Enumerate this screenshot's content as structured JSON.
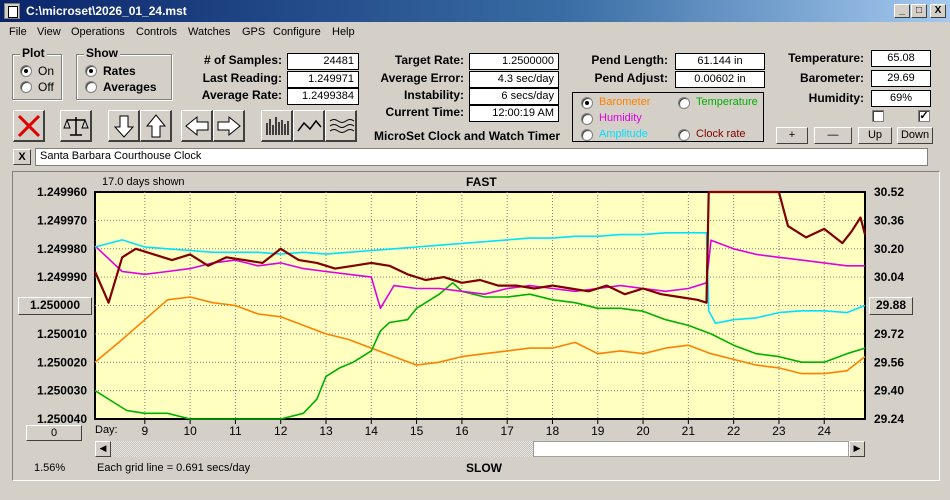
{
  "window": {
    "title": "C:\\microset\\2026_01_24.mst",
    "minimize_glyph": "_",
    "maximize_glyph": "□",
    "close_glyph": "X"
  },
  "menu": [
    "File",
    "View",
    "Operations",
    "Controls",
    "Watches",
    "GPS",
    "Configure",
    "Help"
  ],
  "plot_group": {
    "title": "Plot",
    "on": "On",
    "off": "Off",
    "selected": "On"
  },
  "show_group": {
    "title": "Show",
    "rates": "Rates",
    "averages": "Averages",
    "selected": "Rates"
  },
  "stats": {
    "samples_label": "# of Samples:",
    "samples": "24481",
    "last_label": "Last Reading:",
    "last": "1.249971",
    "avg_rate_label": "Average Rate:",
    "avg_rate": "1.2499384",
    "target_label": "Target Rate:",
    "target": "1.2500000",
    "avg_err_label": "Average Error:",
    "avg_err": "4.3 sec/day",
    "instab_label": "Instability:",
    "instab": "6 secs/day",
    "time_label": "Current Time:",
    "time": "12:00:19 AM",
    "pend_len_label": "Pend Length:",
    "pend_len": "61.144 in",
    "pend_adj_label": "Pend Adjust:",
    "pend_adj": "0.00602 in",
    "temp_label": "Temperature:",
    "temp": "65.08",
    "baro_label": "Barometer:",
    "baro": "29.69",
    "hum_label": "Humidity:",
    "hum": "69%"
  },
  "app_caption": "MicroSet Clock and Watch Timer",
  "channels": {
    "barometer": "Barometer",
    "temperature": "Temperature",
    "humidity": "Humidity",
    "amplitude": "Amplitude",
    "clock_rate": "Clock rate",
    "selected": "Barometer"
  },
  "nav_buttons": {
    "plus": "+",
    "minus": "—",
    "up": "Up",
    "down": "Down"
  },
  "checkboxes": {
    "left_checked": false,
    "right_checked": true,
    "check_glyph": "✓"
  },
  "note": {
    "close_glyph": "X",
    "value": "Santa Barbara Courthouse Clock"
  },
  "toolbar_icons": [
    "clear-x-icon",
    "balance-scale-icon",
    "arrow-down-icon",
    "arrow-up-icon",
    "arrow-left-icon",
    "arrow-right-icon",
    "bar-graph-icon",
    "line-graph-icon",
    "wave-graph-icon"
  ],
  "colors": {
    "barometer": "#ff8000",
    "temperature": "#00b000",
    "humidity": "#e000e0",
    "amplitude": "#00e0ff",
    "clock_rate": "#800000",
    "plot_bg": "#ffffc0",
    "grid": "#808080"
  },
  "chart_data": {
    "type": "line",
    "days_shown": "17.0 days shown",
    "top_label": "FAST",
    "bottom_label": "SLOW",
    "grid_note": "Each grid line = 0.691 secs/day",
    "percent": "1.56%",
    "left_value_box": "1.250000",
    "right_value_box": "29.88",
    "zero_button": "0",
    "xlabel": "Day:",
    "x_ticks": [
      9,
      10,
      11,
      12,
      13,
      14,
      15,
      16,
      17,
      18,
      19,
      20,
      21,
      22,
      23,
      24
    ],
    "xlim": [
      7.9,
      24.9
    ],
    "y_left_ticks": [
      "1.249960",
      "1.249970",
      "1.249980",
      "1.249990",
      "1.250000",
      "1.250010",
      "1.250020",
      "1.250030",
      "1.250040"
    ],
    "y_left_lim": [
      1.24996,
      1.25004
    ],
    "y_right_ticks": [
      "30.52",
      "30.36",
      "30.20",
      "30.04",
      "29.88",
      "29.72",
      "29.56",
      "29.40",
      "29.24"
    ],
    "y_right_lim": [
      29.24,
      30.52
    ],
    "series": [
      {
        "name": "Clock rate",
        "axis": "left",
        "x": [
          7.9,
          8.2,
          8.5,
          8.8,
          9.2,
          9.6,
          10.0,
          10.4,
          10.8,
          11.2,
          11.6,
          12.0,
          12.4,
          12.8,
          13.2,
          13.6,
          14.0,
          14.4,
          14.8,
          15.2,
          15.6,
          16.0,
          16.4,
          16.8,
          17.2,
          17.6,
          18.0,
          18.4,
          18.8,
          19.2,
          19.6,
          20.0,
          20.4,
          20.8,
          21.2,
          21.4,
          21.45,
          21.6,
          22.0,
          22.4,
          22.8,
          23.0,
          23.2,
          23.6,
          24.0,
          24.4,
          24.6,
          24.8,
          24.9
        ],
        "y": [
          1.249988,
          1.249999,
          1.249983,
          1.24998,
          1.249982,
          1.249984,
          1.249982,
          1.249986,
          1.249983,
          1.249984,
          1.249985,
          1.24998,
          1.249984,
          1.249985,
          1.249987,
          1.249986,
          1.249985,
          1.249986,
          1.249989,
          1.249991,
          1.24999,
          1.249992,
          1.249991,
          1.249993,
          1.249993,
          1.249994,
          1.249993,
          1.249994,
          1.249995,
          1.249993,
          1.249996,
          1.249994,
          1.249996,
          1.249997,
          1.249998,
          1.249999,
          1.24996,
          1.24996,
          1.24996,
          1.24996,
          1.24996,
          1.24996,
          1.249972,
          1.249976,
          1.249973,
          1.249978,
          1.249974,
          1.249969,
          1.249975
        ]
      },
      {
        "name": "Amplitude",
        "axis": "right",
        "x": [
          7.9,
          8.5,
          9.0,
          9.5,
          10.0,
          10.5,
          11.0,
          11.5,
          12.0,
          12.5,
          13.0,
          13.5,
          14.0,
          14.5,
          15.0,
          15.5,
          16.0,
          16.5,
          17.0,
          17.5,
          18.0,
          18.5,
          19.0,
          19.5,
          20.0,
          20.5,
          21.0,
          21.4,
          21.45,
          21.6,
          22.0,
          22.5,
          23.0,
          23.5,
          24.0,
          24.5,
          24.9
        ],
        "y": [
          30.21,
          30.25,
          30.21,
          30.2,
          30.19,
          30.18,
          30.18,
          30.18,
          30.17,
          30.18,
          30.17,
          30.18,
          30.19,
          30.2,
          30.21,
          30.22,
          30.23,
          30.24,
          30.25,
          30.26,
          30.26,
          30.27,
          30.27,
          30.28,
          30.28,
          30.29,
          30.29,
          30.29,
          29.85,
          29.78,
          29.8,
          29.81,
          29.84,
          29.85,
          29.85,
          29.84,
          29.88
        ]
      },
      {
        "name": "Humidity",
        "axis": "left",
        "x": [
          7.9,
          8.5,
          9.0,
          9.5,
          10.0,
          10.5,
          11.0,
          11.5,
          12.0,
          12.5,
          13.0,
          13.5,
          14.0,
          14.2,
          14.5,
          15.0,
          15.5,
          16.0,
          16.5,
          17.0,
          17.5,
          18.0,
          18.5,
          19.0,
          19.5,
          20.0,
          20.5,
          21.0,
          21.4,
          21.5,
          22.0,
          22.5,
          23.0,
          23.5,
          24.0,
          24.5,
          24.9
        ],
        "y": [
          1.249979,
          1.249988,
          1.249989,
          1.249988,
          1.249987,
          1.249985,
          1.249984,
          1.249986,
          1.249985,
          1.249987,
          1.249988,
          1.249989,
          1.24999,
          1.250001,
          1.249993,
          1.249994,
          1.249994,
          1.249995,
          1.249996,
          1.249994,
          1.249993,
          1.249994,
          1.249995,
          1.249994,
          1.249993,
          1.249994,
          1.249995,
          1.249994,
          1.249992,
          1.249977,
          1.24998,
          1.249982,
          1.249983,
          1.249984,
          1.249985,
          1.249986,
          1.249986
        ]
      },
      {
        "name": "Barometer",
        "axis": "left",
        "x": [
          7.9,
          8.5,
          9.0,
          9.5,
          10.0,
          10.5,
          11.0,
          11.5,
          12.0,
          12.5,
          13.0,
          13.5,
          14.0,
          14.5,
          15.0,
          15.5,
          16.0,
          16.5,
          17.0,
          17.5,
          18.0,
          18.5,
          19.0,
          19.5,
          20.0,
          20.5,
          21.0,
          21.5,
          22.0,
          22.5,
          23.0,
          23.5,
          24.0,
          24.5,
          24.9
        ],
        "y": [
          1.25002,
          1.250012,
          1.250005,
          1.249998,
          1.249997,
          1.249999,
          1.25,
          1.250003,
          1.250004,
          1.250007,
          1.25001,
          1.250012,
          1.250015,
          1.250018,
          1.250021,
          1.25002,
          1.250018,
          1.250017,
          1.250016,
          1.250015,
          1.250015,
          1.250013,
          1.250017,
          1.250016,
          1.250017,
          1.250015,
          1.250014,
          1.250017,
          1.250019,
          1.250021,
          1.250022,
          1.250024,
          1.250024,
          1.250023,
          1.250018
        ]
      },
      {
        "name": "Temperature",
        "axis": "left",
        "x": [
          7.9,
          8.3,
          8.6,
          9.0,
          9.5,
          10.0,
          10.5,
          11.0,
          11.5,
          12.0,
          12.5,
          12.8,
          13.0,
          13.3,
          13.6,
          14.0,
          14.2,
          14.4,
          14.8,
          15.0,
          15.5,
          15.8,
          16.0,
          16.5,
          17.0,
          17.5,
          18.0,
          18.5,
          19.0,
          19.5,
          20.0,
          20.5,
          21.0,
          21.5,
          22.0,
          22.5,
          23.0,
          23.5,
          24.0,
          24.5,
          24.9
        ],
        "y": [
          1.25003,
          1.250034,
          1.250037,
          1.250038,
          1.250038,
          1.25004,
          1.25004,
          1.25004,
          1.25004,
          1.25004,
          1.250038,
          1.250033,
          1.250025,
          1.250022,
          1.25002,
          1.250016,
          1.250009,
          1.250006,
          1.250005,
          1.250001,
          1.249996,
          1.249992,
          1.249995,
          1.249997,
          1.249997,
          1.249996,
          1.249998,
          1.249999,
          1.250001,
          1.250001,
          1.250002,
          1.250005,
          1.250007,
          1.25001,
          1.250014,
          1.250017,
          1.250018,
          1.25002,
          1.25002,
          1.250017,
          1.250015
        ]
      }
    ]
  }
}
